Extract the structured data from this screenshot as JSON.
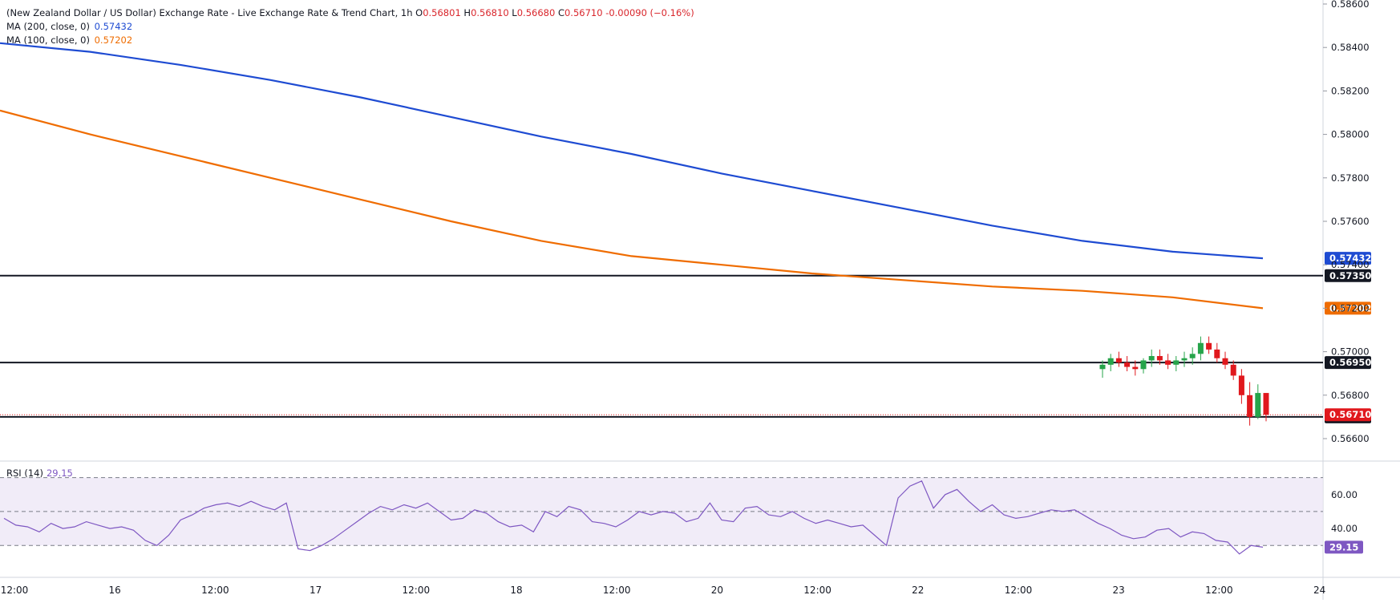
{
  "header": {
    "title": "(New Zealand Dollar / US Dollar) Exchange Rate - Live Exchange Rate & Trend Chart, 1h",
    "open_label": "O",
    "open": "0.56801",
    "high_label": "H",
    "high": "0.56810",
    "low_label": "L",
    "low": "0.56680",
    "close_label": "C",
    "close": "0.56710",
    "change": "-0.00090 (−0.16%)"
  },
  "indicators": {
    "ma200": {
      "label": "MA (200, close, 0)",
      "value": "0.57432",
      "color": "#1e4bd2"
    },
    "ma100": {
      "label": "MA (100, close, 0)",
      "value": "0.57202",
      "color": "#ef6c00"
    },
    "rsi": {
      "label": "RSI (14)",
      "value": "29.15",
      "color": "#7e57c2"
    }
  },
  "colors": {
    "up": "#26a44a",
    "down": "#e0181d",
    "ma200": "#1e4bd2",
    "ma100": "#ef6c00",
    "rsi": "#7e57c2",
    "level": "#131722",
    "last": "#e0181d"
  },
  "chart_data": {
    "type": "candlestick",
    "title": "(New Zealand Dollar / US Dollar) Exchange Rate - Live Exchange Rate & Trend Chart, 1h",
    "price_axis": {
      "min": 0.566,
      "max": 0.586,
      "ticks": [
        "0.58600",
        "0.58400",
        "0.58200",
        "0.58000",
        "0.57800",
        "0.57600",
        "0.57400",
        "0.57200",
        "0.57000",
        "0.56800",
        "0.56600"
      ]
    },
    "x_tick_labels": [
      "12:00",
      "16",
      "12:00",
      "17",
      "12:00",
      "18",
      "12:00",
      "20",
      "12:00",
      "22",
      "12:00",
      "23",
      "12:00",
      "24"
    ],
    "horizontal_levels": [
      {
        "value": 0.5735,
        "label": "0.57350"
      },
      {
        "value": 0.5695,
        "label": "0.56950"
      },
      {
        "value": 0.567,
        "label": "0.56700"
      }
    ],
    "last_price": {
      "value": 0.5671,
      "label": "0.56710"
    },
    "ma200_points": [
      [
        0,
        0.5842
      ],
      [
        40,
        0.5838
      ],
      [
        80,
        0.5832
      ],
      [
        120,
        0.5825
      ],
      [
        160,
        0.5817
      ],
      [
        200,
        0.5808
      ],
      [
        240,
        0.5799
      ],
      [
        280,
        0.5791
      ],
      [
        320,
        0.5782
      ],
      [
        360,
        0.5774
      ],
      [
        400,
        0.5766
      ],
      [
        440,
        0.5758
      ],
      [
        480,
        0.5751
      ],
      [
        520,
        0.5746
      ],
      [
        560,
        0.5743
      ]
    ],
    "ma100_points": [
      [
        0,
        0.5811
      ],
      [
        40,
        0.58
      ],
      [
        80,
        0.579
      ],
      [
        120,
        0.578
      ],
      [
        160,
        0.577
      ],
      [
        200,
        0.576
      ],
      [
        240,
        0.5751
      ],
      [
        280,
        0.5744
      ],
      [
        320,
        0.574
      ],
      [
        360,
        0.5736
      ],
      [
        400,
        0.5733
      ],
      [
        440,
        0.573
      ],
      [
        480,
        0.5728
      ],
      [
        520,
        0.5725
      ],
      [
        560,
        0.572
      ]
    ],
    "candles_ohlc": [
      [
        0.5692,
        0.5696,
        0.5688,
        0.5694
      ],
      [
        0.5694,
        0.5699,
        0.5691,
        0.5697
      ],
      [
        0.5697,
        0.57,
        0.5693,
        0.5695
      ],
      [
        0.5695,
        0.5698,
        0.5691,
        0.5693
      ],
      [
        0.5693,
        0.5696,
        0.5689,
        0.5692
      ],
      [
        0.5692,
        0.5697,
        0.569,
        0.5696
      ],
      [
        0.5696,
        0.5701,
        0.5693,
        0.5698
      ],
      [
        0.5698,
        0.5701,
        0.5694,
        0.5696
      ],
      [
        0.5696,
        0.5699,
        0.5692,
        0.5694
      ],
      [
        0.5694,
        0.5698,
        0.5691,
        0.5696
      ],
      [
        0.5696,
        0.57,
        0.5693,
        0.5697
      ],
      [
        0.5697,
        0.5702,
        0.5694,
        0.5699
      ],
      [
        0.5699,
        0.5707,
        0.5696,
        0.5704
      ],
      [
        0.5704,
        0.5707,
        0.5699,
        0.5701
      ],
      [
        0.5701,
        0.5704,
        0.5695,
        0.5697
      ],
      [
        0.5697,
        0.57,
        0.5692,
        0.5694
      ],
      [
        0.5694,
        0.5696,
        0.5687,
        0.5689
      ],
      [
        0.5689,
        0.5692,
        0.5676,
        0.568
      ],
      [
        0.568,
        0.5686,
        0.5666,
        0.567
      ],
      [
        0.567,
        0.5685,
        0.5669,
        0.5681
      ],
      [
        0.5681,
        0.5681,
        0.5668,
        0.5671
      ]
    ],
    "rsi": {
      "ylim": [
        15,
        75
      ],
      "ticks": [
        "60.00",
        "40.00"
      ],
      "band": [
        30,
        70
      ],
      "midline": 50,
      "last_label": "29.15",
      "values": [
        46,
        42,
        41,
        38,
        43,
        40,
        41,
        44,
        42,
        40,
        41,
        39,
        33,
        30,
        36,
        45,
        48,
        52,
        54,
        55,
        53,
        56,
        53,
        51,
        55,
        28,
        27,
        30,
        34,
        39,
        44,
        49,
        53,
        51,
        54,
        52,
        55,
        50,
        45,
        46,
        51,
        49,
        44,
        41,
        42,
        38,
        50,
        47,
        53,
        51,
        44,
        43,
        41,
        45,
        50,
        48,
        50,
        49,
        44,
        46,
        55,
        45,
        44,
        52,
        53,
        48,
        47,
        50,
        46,
        43,
        45,
        43,
        41,
        42,
        36,
        30,
        58,
        65,
        68,
        52,
        60,
        63,
        56,
        50,
        54,
        48,
        46,
        47,
        49,
        51,
        50,
        51,
        47,
        43,
        40,
        36,
        34,
        35,
        39,
        40,
        35,
        38,
        37,
        33,
        32,
        25,
        30,
        29
      ]
    }
  }
}
